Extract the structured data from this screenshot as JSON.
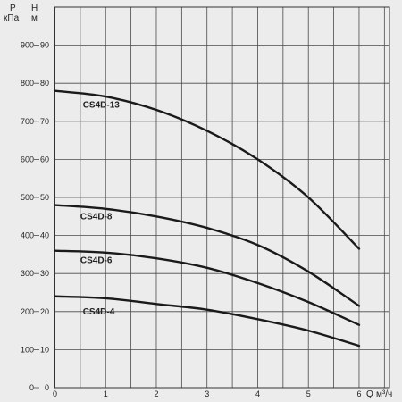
{
  "chart_data": {
    "type": "line",
    "y_axis_pressure": {
      "symbol": "P",
      "unit": "кПа",
      "ticks": [
        "0",
        "100",
        "200",
        "300",
        "400",
        "500",
        "600",
        "700",
        "800",
        "900"
      ],
      "range": [
        0,
        1000
      ]
    },
    "y_axis_head": {
      "symbol": "Н",
      "unit": "м",
      "ticks": [
        "0",
        "10",
        "20",
        "30",
        "40",
        "50",
        "60",
        "70",
        "80",
        "90"
      ],
      "range": [
        0,
        100
      ]
    },
    "x_axis": {
      "symbol": "Q",
      "unit": "м³/ч",
      "ticks": [
        "0",
        "1",
        "2",
        "3",
        "4",
        "5",
        "6"
      ],
      "range": [
        0,
        6.6
      ]
    },
    "grid": true,
    "series": [
      {
        "name": "CS4D-13",
        "x": [
          0,
          1,
          2,
          3,
          4,
          5,
          6
        ],
        "y": [
          78,
          76.5,
          73,
          67.5,
          60,
          50,
          36.5
        ]
      },
      {
        "name": "CS4D-8",
        "x": [
          0,
          1,
          2,
          3,
          4,
          5,
          6
        ],
        "y": [
          48,
          47,
          45,
          42,
          37.5,
          30.5,
          21.5
        ]
      },
      {
        "name": "CS4D-6",
        "x": [
          0,
          1,
          2,
          3,
          4,
          5,
          6
        ],
        "y": [
          36,
          35.5,
          34,
          31.5,
          27.5,
          22.5,
          16.5
        ]
      },
      {
        "name": "CS4D-4",
        "x": [
          0,
          1,
          2,
          3,
          4,
          5,
          6
        ],
        "y": [
          24,
          23.5,
          22,
          20.5,
          18,
          15,
          11
        ]
      }
    ]
  }
}
